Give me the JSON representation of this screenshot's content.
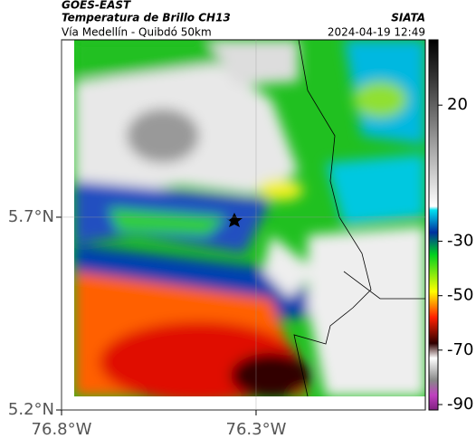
{
  "header": {
    "title": "GOES-EAST",
    "subtitle": "Temperatura de Brillo CH13",
    "source": "SIATA",
    "region": "Vía Medellín - Quibdó 50km",
    "datetime": "2024-04-19 12:49"
  },
  "map": {
    "xlim": [
      -76.8,
      -75.865
    ],
    "ylim": [
      5.2,
      6.16
    ],
    "xticks": [
      {
        "value": -76.8,
        "label": "76.8°W"
      },
      {
        "value": -76.3,
        "label": "76.3°W"
      }
    ],
    "yticks": [
      {
        "value": 5.2,
        "label": "5.2°N"
      },
      {
        "value": 5.7,
        "label": "5.7°N"
      }
    ],
    "grid": true
  },
  "colorbar": {
    "clim": [
      -92,
      44
    ],
    "ticks": [
      20,
      -30,
      -50,
      -70,
      -90
    ]
  }
}
